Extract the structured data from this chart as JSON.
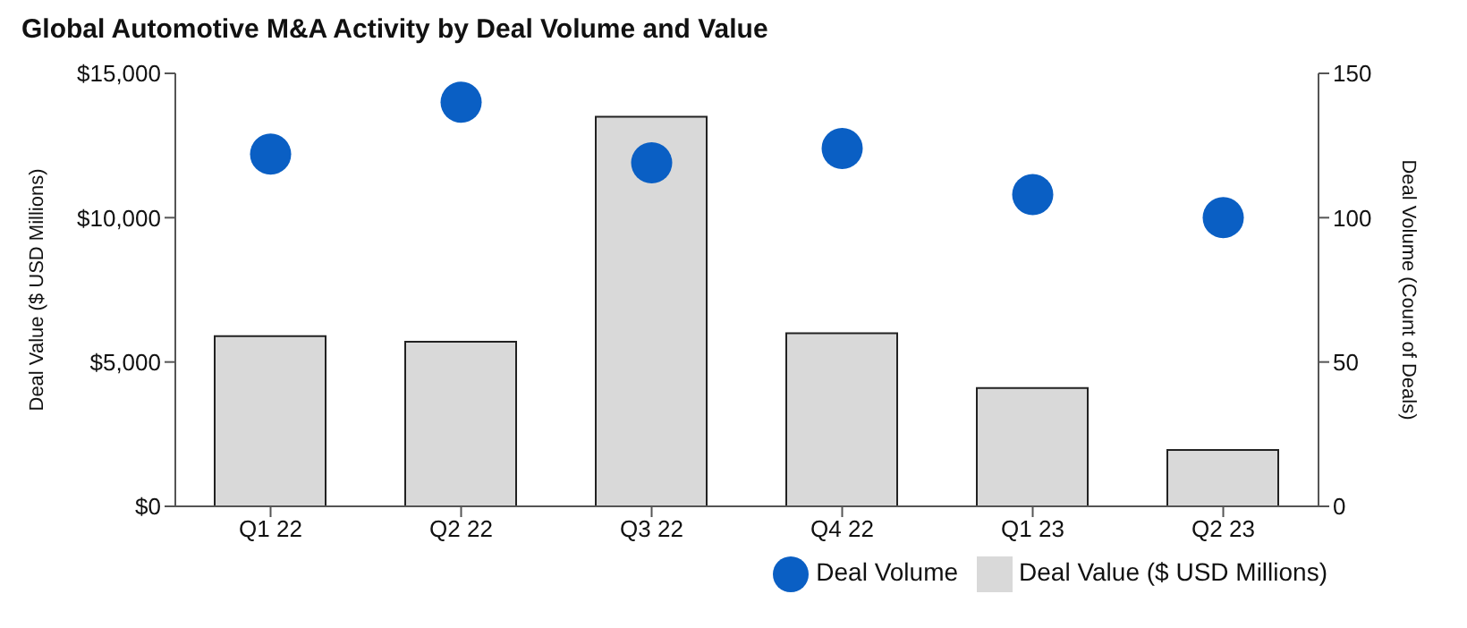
{
  "chart_data": {
    "type": "bar",
    "title": "Global Automotive M&A Activity by Deal Volume and Value",
    "categories": [
      "Q1 22",
      "Q2 22",
      "Q3 22",
      "Q4 22",
      "Q1 23",
      "Q2 23"
    ],
    "series": [
      {
        "name": "Deal Volume",
        "type": "scatter",
        "axis": "y2",
        "color": "#0a5fc4",
        "values": [
          122,
          140,
          119,
          124,
          108,
          100
        ]
      },
      {
        "name": "Deal Value ($ USD Millions)",
        "color": "#d9d9d9",
        "values": [
          5900,
          5700,
          13500,
          6000,
          4100,
          1950
        ]
      }
    ],
    "ylabel": "Deal Value ($ USD Millions)",
    "y2label": "Deal Volume (Count of Deals)",
    "ylim": [
      0,
      15000
    ],
    "yticks": [
      {
        "value": 0,
        "label": "$0"
      },
      {
        "value": 5000,
        "label": "$5,000"
      },
      {
        "value": 10000,
        "label": "$10,000"
      },
      {
        "value": 15000,
        "label": "$15,000"
      }
    ],
    "y2lim": [
      0,
      150
    ],
    "y2ticks": [
      0,
      50,
      100,
      150
    ],
    "marker": "circle",
    "grid": false,
    "legend": "bottom right"
  }
}
